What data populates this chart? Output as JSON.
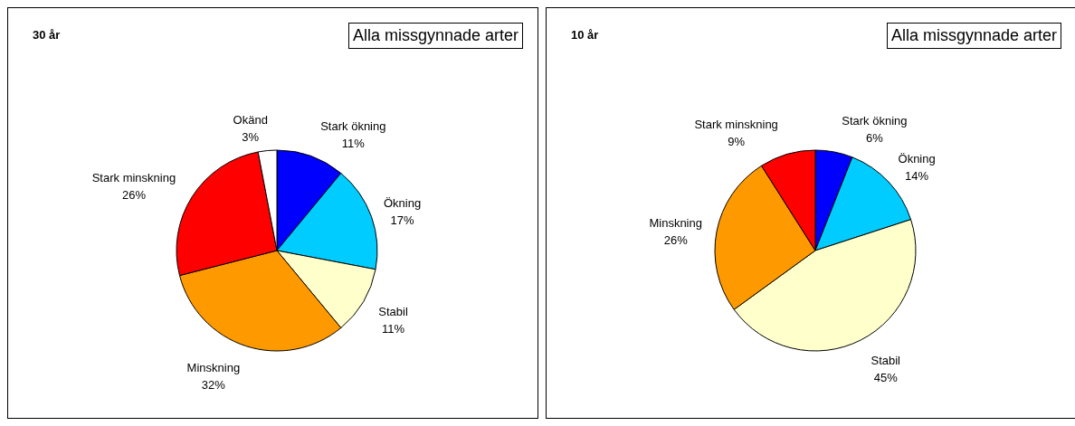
{
  "chart_data": [
    {
      "type": "pie",
      "title": "30 år",
      "subtitle": "Alla missgynnade arter",
      "categories": [
        "Stark ökning",
        "Ökning",
        "Stabil",
        "Minskning",
        "Stark minskning",
        "Okänd"
      ],
      "values": [
        11,
        17,
        11,
        32,
        26,
        3
      ],
      "value_labels": [
        "11%",
        "17%",
        "11%",
        "32%",
        "26%",
        "3%"
      ],
      "colors": [
        "#0000ff",
        "#00ccff",
        "#ffffcc",
        "#ff9900",
        "#ff0000",
        "#ffffff"
      ]
    },
    {
      "type": "pie",
      "title": "10 år",
      "subtitle": "Alla missgynnade arter",
      "categories": [
        "Stark ökning",
        "Ökning",
        "Stabil",
        "Minskning",
        "Stark minskning"
      ],
      "values": [
        6,
        14,
        45,
        26,
        9
      ],
      "value_labels": [
        "6%",
        "14%",
        "45%",
        "26%",
        "9%"
      ],
      "colors": [
        "#0000ff",
        "#00ccff",
        "#ffffcc",
        "#ff9900",
        "#ff0000"
      ]
    }
  ]
}
